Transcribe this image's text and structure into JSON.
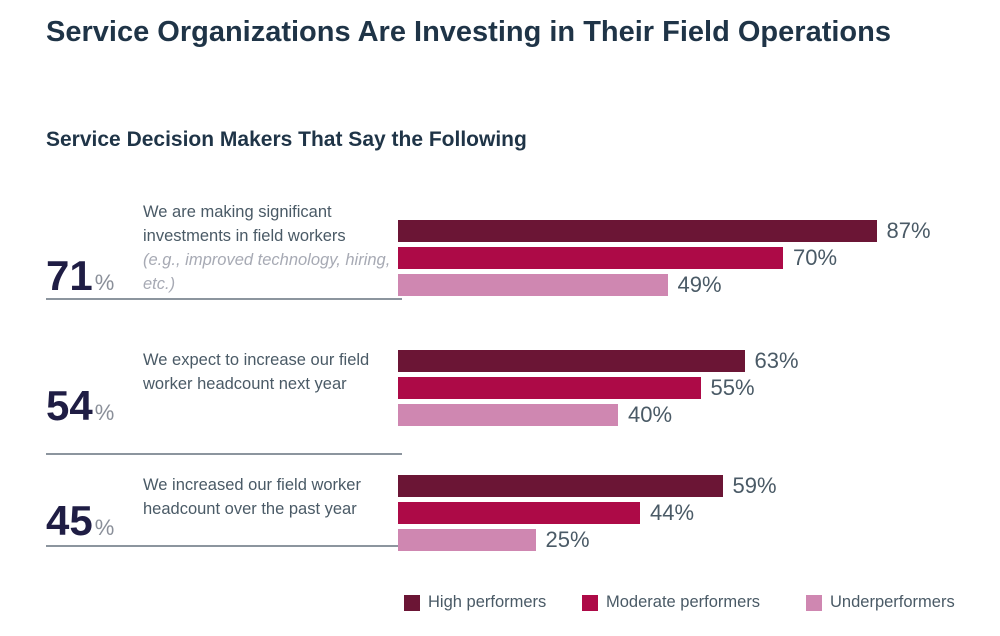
{
  "chart_data": {
    "type": "bar",
    "orientation": "horizontal",
    "title": "Service Organizations Are Investing in Their Field Operations",
    "subtitle": "Service Decision Makers That Say the Following",
    "categories": [
      {
        "overall_value": "71",
        "overall_unit": "%",
        "label": "We are making significant investments in field workers",
        "note": "(e.g., improved technology, hiring, etc.)"
      },
      {
        "overall_value": "54",
        "overall_unit": "%",
        "label": "We expect to increase our field worker headcount next year",
        "note": ""
      },
      {
        "overall_value": "45",
        "overall_unit": "%",
        "label": "We increased our field worker headcount over the past year",
        "note": ""
      }
    ],
    "series": [
      {
        "name": "High performers",
        "color": "#6b1535",
        "values": [
          87,
          63,
          59
        ],
        "labels": [
          "87%",
          "63%",
          "59%"
        ]
      },
      {
        "name": "Moderate performers",
        "color": "#ad0a47",
        "values": [
          70,
          55,
          44
        ],
        "labels": [
          "70%",
          "55%",
          "44%"
        ]
      },
      {
        "name": "Underperformers",
        "color": "#cf87b1",
        "values": [
          49,
          40,
          25
        ],
        "labels": [
          "49%",
          "40%",
          "25%"
        ]
      }
    ],
    "xlim": [
      0,
      100
    ],
    "grid": false,
    "legend_position": "bottom-right"
  }
}
